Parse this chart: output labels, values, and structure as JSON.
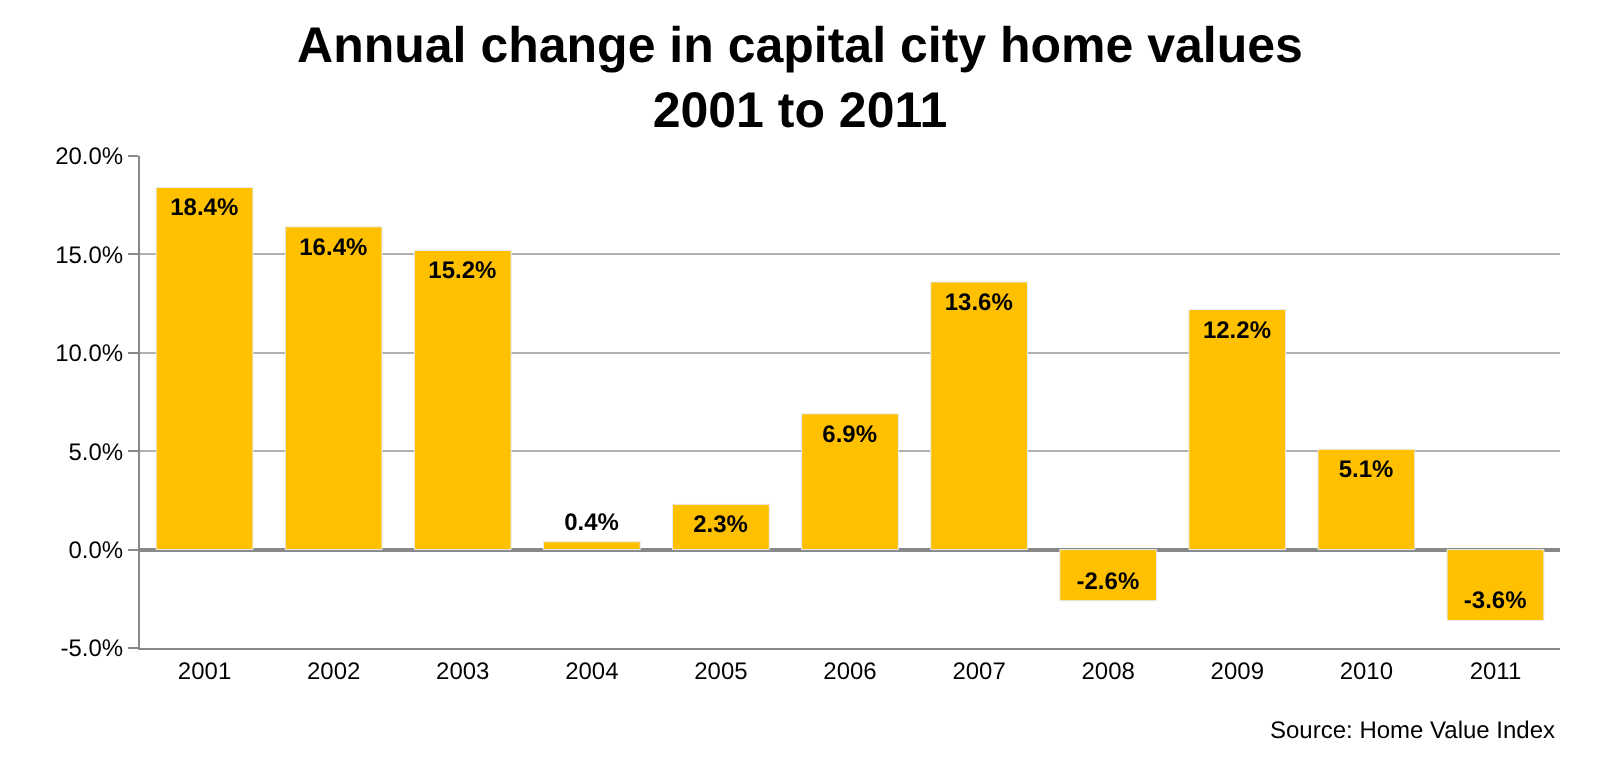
{
  "chart_data": {
    "type": "bar",
    "title": "Annual change in capital city home values\n2001 to 2011",
    "categories": [
      "2001",
      "2002",
      "2003",
      "2004",
      "2005",
      "2006",
      "2007",
      "2008",
      "2009",
      "2010",
      "2011"
    ],
    "values": [
      18.4,
      16.4,
      15.2,
      0.4,
      2.3,
      6.9,
      13.6,
      -2.6,
      12.2,
      5.1,
      -3.6
    ],
    "value_labels": [
      "18.4%",
      "16.4%",
      "15.2%",
      "0.4%",
      "2.3%",
      "6.9%",
      "13.6%",
      "-2.6%",
      "12.2%",
      "5.1%",
      "-3.6%"
    ],
    "color": "#ffc000",
    "ylim": [
      -5,
      20
    ],
    "yticks": [
      {
        "value": -5,
        "label": "-5.0%"
      },
      {
        "value": 0,
        "label": "0.0%"
      },
      {
        "value": 5,
        "label": "5.0%"
      },
      {
        "value": 10,
        "label": "10.0%"
      },
      {
        "value": 15,
        "label": "15.0%"
      },
      {
        "value": 20,
        "label": "20.0%"
      }
    ],
    "grid": "y",
    "legend": false,
    "annotations": [
      "Source: Home Value Index"
    ]
  }
}
